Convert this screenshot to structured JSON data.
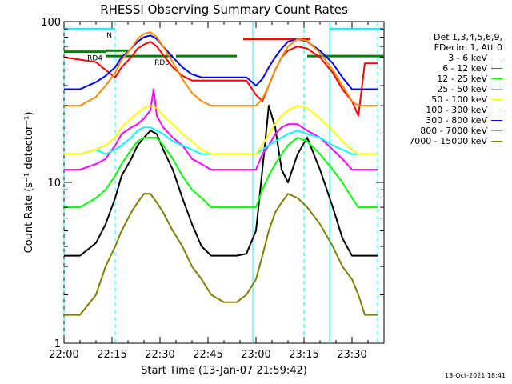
{
  "chart_data": {
    "type": "line",
    "title": "RHESSI Observing Summary Count Rates",
    "xlabel": "Start Time (13-Jan-07 21:59:42)",
    "ylabel": "Count Rate (s⁻¹ detector⁻¹)",
    "x_unit": "minutes since 22:00",
    "xlim": [
      0,
      100
    ],
    "ylim": [
      1,
      100
    ],
    "yscale": "log",
    "x_ticks": [
      {
        "value": 0,
        "label": "22:00"
      },
      {
        "value": 15,
        "label": "22:15"
      },
      {
        "value": 30,
        "label": "22:30"
      },
      {
        "value": 45,
        "label": "22:45"
      },
      {
        "value": 60,
        "label": "23:00"
      },
      {
        "value": 75,
        "label": "23:15"
      },
      {
        "value": 90,
        "label": "23:30"
      }
    ],
    "y_ticks": [
      {
        "value": 1,
        "label": "1"
      },
      {
        "value": 10,
        "label": "10"
      },
      {
        "value": 100,
        "label": "100"
      }
    ],
    "legend": {
      "placement": "right",
      "header": [
        "Det 1,3,4,5,6,9,",
        "FDecim 1, Att 0"
      ]
    },
    "series": [
      {
        "name": "3 - 6 keV",
        "color": "#000000",
        "x": [
          0,
          5,
          10,
          13,
          16,
          18,
          21,
          23,
          25,
          27,
          29,
          31,
          34,
          37,
          40,
          43,
          46,
          50,
          54,
          57,
          60,
          62,
          64,
          66,
          68,
          70,
          73,
          76,
          80,
          84,
          87,
          90,
          92,
          94,
          96,
          98
        ],
        "y": [
          3.5,
          3.5,
          4.2,
          5.5,
          8,
          11,
          14,
          17,
          19,
          21,
          20,
          16,
          12,
          8,
          5.5,
          4,
          3.5,
          3.5,
          3.5,
          3.6,
          5,
          12,
          30,
          22,
          12,
          10,
          15,
          19,
          12,
          7,
          4.5,
          3.5,
          3.5,
          3.5,
          3.5,
          3.5
        ]
      },
      {
        "name": "6 - 12 keV",
        "color": "#ff00ff",
        "x": [
          0,
          5,
          10,
          13,
          16,
          18,
          21,
          23,
          25,
          27,
          28,
          29,
          31,
          34,
          37,
          40,
          43,
          46,
          50,
          54,
          57,
          60,
          62,
          64,
          66,
          68,
          70,
          73,
          76,
          80,
          84,
          87,
          90,
          92,
          94,
          96,
          98
        ],
        "y": [
          12,
          12,
          13,
          14,
          17,
          20,
          22,
          23,
          25,
          28,
          38,
          26,
          22,
          19,
          17,
          14,
          13,
          12,
          12,
          12,
          12,
          12,
          15,
          17,
          20,
          22,
          23,
          23,
          21,
          19,
          16,
          14,
          12,
          12,
          12,
          12,
          12
        ]
      },
      {
        "name": "12 - 25 keV",
        "color": "#00ff00",
        "x": [
          0,
          5,
          10,
          13,
          16,
          18,
          21,
          23,
          25,
          27,
          29,
          31,
          34,
          37,
          40,
          43,
          46,
          50,
          54,
          57,
          60,
          62,
          64,
          66,
          68,
          70,
          73,
          76,
          80,
          84,
          87,
          90,
          92,
          94,
          96,
          98
        ],
        "y": [
          7,
          7,
          8,
          9,
          11,
          13,
          16,
          18,
          19,
          19,
          19,
          17,
          14,
          11,
          9,
          8,
          7,
          7,
          7,
          7,
          7,
          9,
          11,
          13,
          15,
          17,
          19,
          18,
          15,
          12,
          10,
          8,
          7,
          7,
          7,
          7
        ]
      },
      {
        "name": "25 - 50 keV",
        "color": "#00ffff",
        "x": [
          0,
          5,
          10,
          13,
          16,
          18,
          21,
          23,
          25,
          27,
          29,
          31,
          34,
          37,
          40,
          43,
          46,
          50,
          54,
          57,
          60,
          62,
          64,
          66,
          68,
          70,
          73,
          76,
          80,
          84,
          87,
          90,
          92,
          94,
          96,
          98
        ],
        "y": [
          15,
          15,
          16,
          15,
          16,
          17,
          19,
          21,
          22,
          22,
          21,
          20,
          18,
          17,
          16,
          15,
          15,
          15,
          15,
          15,
          15,
          16,
          17,
          18,
          19,
          20,
          21,
          20,
          19,
          17,
          16,
          15,
          15,
          15,
          15,
          15
        ]
      },
      {
        "name": "50 - 100 keV",
        "color": "#ffff00",
        "x": [
          0,
          5,
          10,
          13,
          16,
          18,
          21,
          23,
          25,
          27,
          29,
          31,
          34,
          37,
          40,
          43,
          46,
          50,
          54,
          57,
          60,
          62,
          64,
          66,
          68,
          70,
          73,
          76,
          80,
          84,
          87,
          90,
          92,
          94,
          96,
          98
        ],
        "y": [
          15,
          15,
          16,
          17,
          19,
          22,
          25,
          27,
          29,
          30,
          29,
          26,
          23,
          20,
          18,
          16,
          15,
          15,
          15,
          15,
          15,
          17,
          20,
          23,
          26,
          28,
          30,
          29,
          25,
          21,
          18,
          16,
          15,
          15,
          15,
          15
        ]
      },
      {
        "name": "100 - 300 keV",
        "color": "#ff0000",
        "x": [
          0,
          5,
          10,
          13,
          16,
          18,
          21,
          23,
          25,
          27,
          29,
          31,
          34,
          37,
          40,
          43,
          46,
          50,
          54,
          57,
          60,
          62,
          64,
          66,
          68,
          70,
          73,
          76,
          80,
          84,
          87,
          90,
          92,
          94,
          96,
          98
        ],
        "y": [
          60,
          58,
          56,
          50,
          45,
          52,
          60,
          68,
          72,
          75,
          70,
          62,
          52,
          46,
          43,
          43,
          43,
          43,
          43,
          43,
          35,
          32,
          40,
          50,
          60,
          66,
          70,
          68,
          60,
          48,
          38,
          32,
          26,
          55,
          55,
          55
        ]
      },
      {
        "name": "300 - 800 keV",
        "color": "#0000ff",
        "x": [
          0,
          5,
          10,
          13,
          16,
          18,
          21,
          23,
          25,
          27,
          29,
          31,
          34,
          37,
          40,
          43,
          46,
          50,
          54,
          57,
          60,
          62,
          64,
          66,
          68,
          70,
          73,
          76,
          80,
          84,
          87,
          90,
          92,
          94,
          96,
          98
        ],
        "y": [
          38,
          38,
          42,
          46,
          52,
          60,
          68,
          75,
          80,
          82,
          78,
          70,
          60,
          52,
          47,
          45,
          45,
          45,
          45,
          45,
          40,
          44,
          52,
          60,
          68,
          75,
          78,
          75,
          66,
          55,
          45,
          38,
          38,
          38,
          38,
          38
        ]
      },
      {
        "name": "800 - 7000 keV",
        "color": "#ff8c00",
        "x": [
          0,
          5,
          10,
          13,
          16,
          18,
          21,
          23,
          25,
          27,
          29,
          31,
          34,
          37,
          40,
          43,
          46,
          50,
          54,
          57,
          60,
          62,
          64,
          66,
          68,
          70,
          73,
          76,
          80,
          84,
          87,
          90,
          92,
          94,
          96,
          98
        ],
        "y": [
          30,
          30,
          34,
          40,
          48,
          58,
          68,
          78,
          84,
          86,
          80,
          70,
          56,
          44,
          36,
          32,
          30,
          30,
          30,
          30,
          30,
          33,
          40,
          50,
          60,
          70,
          78,
          76,
          64,
          50,
          40,
          32,
          30,
          30,
          30,
          30
        ]
      },
      {
        "name": "7000 - 15000 keV",
        "color": "#808000",
        "x": [
          0,
          5,
          10,
          13,
          16,
          18,
          21,
          23,
          25,
          27,
          29,
          31,
          34,
          37,
          40,
          43,
          46,
          50,
          54,
          57,
          60,
          62,
          64,
          66,
          68,
          70,
          73,
          76,
          80,
          84,
          87,
          90,
          92,
          94,
          96,
          98
        ],
        "y": [
          1.5,
          1.5,
          2,
          3,
          4,
          5,
          6.5,
          7.5,
          8.5,
          8.5,
          7.5,
          6.5,
          5,
          4,
          3,
          2.5,
          2,
          1.8,
          1.8,
          2,
          2.5,
          3.5,
          5,
          6.5,
          7.5,
          8.5,
          8,
          7,
          5.5,
          4,
          3,
          2.5,
          2,
          1.5,
          1.5,
          1.5
        ]
      }
    ],
    "flag_bars": [
      {
        "label": "N",
        "color": "#00ffff",
        "y": 90,
        "segments": [
          [
            0,
            16
          ],
          [
            83,
            100
          ]
        ]
      },
      {
        "label": "RD4",
        "color": "#008000",
        "y": 65,
        "segments": [
          [
            0,
            13
          ]
        ]
      },
      {
        "label": "RD0",
        "color": "#008000",
        "y": 61,
        "segments": [
          [
            13,
            34
          ],
          [
            35,
            54
          ],
          [
            76,
            100
          ]
        ]
      },
      {
        "label": "",
        "color": "#008000",
        "y": 66,
        "segments": [
          [
            13,
            20
          ]
        ]
      },
      {
        "label": "",
        "color": "#ff0000",
        "y": 78,
        "segments": [
          [
            56,
            77
          ]
        ]
      }
    ],
    "vertical_markers": [
      {
        "x": 0,
        "color": "#00ffff",
        "style": "dashed"
      },
      {
        "x": 16,
        "color": "#00ffff",
        "style": "dashed"
      },
      {
        "x": 59,
        "color": "#00ffff",
        "style": "solid"
      },
      {
        "x": 75,
        "color": "#00ffff",
        "style": "dashed"
      },
      {
        "x": 83,
        "color": "#00ffff",
        "style": "solid"
      },
      {
        "x": 98,
        "color": "#00ffff",
        "style": "dashed"
      }
    ],
    "grid": false
  },
  "timestamp": "13-Oct-2021 18:41"
}
